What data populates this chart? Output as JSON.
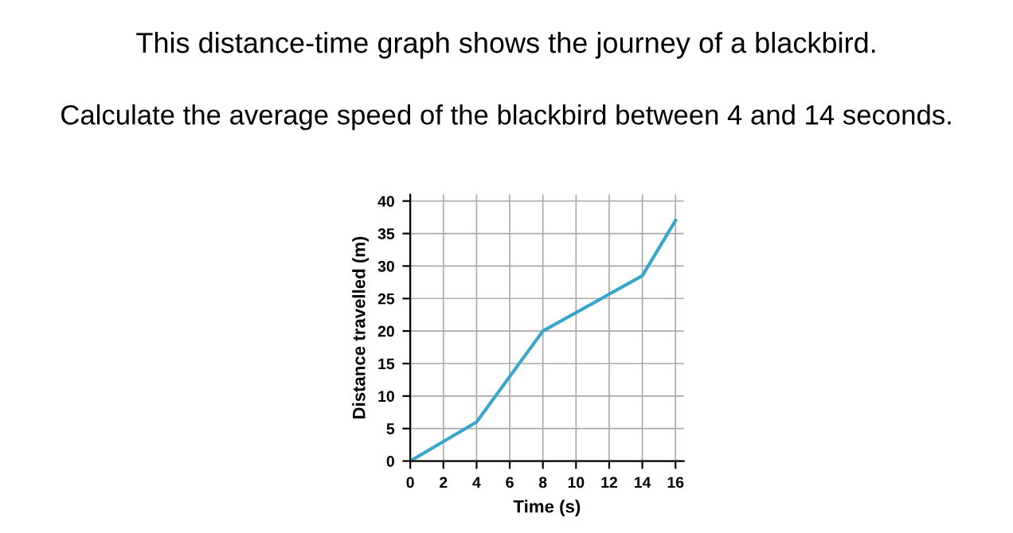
{
  "chart_data": {
    "type": "line",
    "title": "This distance-time graph shows the journey of a blackbird.",
    "subtitle": "Calculate the average speed of the blackbird between 4 and 14 seconds.",
    "xlabel": "Time (s)",
    "ylabel": "Distance travelled (m)",
    "x": [
      0,
      4,
      8,
      14,
      16
    ],
    "series": [
      {
        "color": "#3aa6c9",
        "values": [
          0,
          6,
          20,
          28.5,
          37
        ]
      }
    ],
    "xlim": [
      0,
      16.5
    ],
    "xticks": [
      0,
      2,
      4,
      6,
      8,
      10,
      12,
      14,
      16
    ],
    "ylim": [
      0,
      41
    ],
    "yticks": [
      0,
      5,
      10,
      15,
      20,
      25,
      30,
      35,
      40
    ],
    "grid": true
  }
}
